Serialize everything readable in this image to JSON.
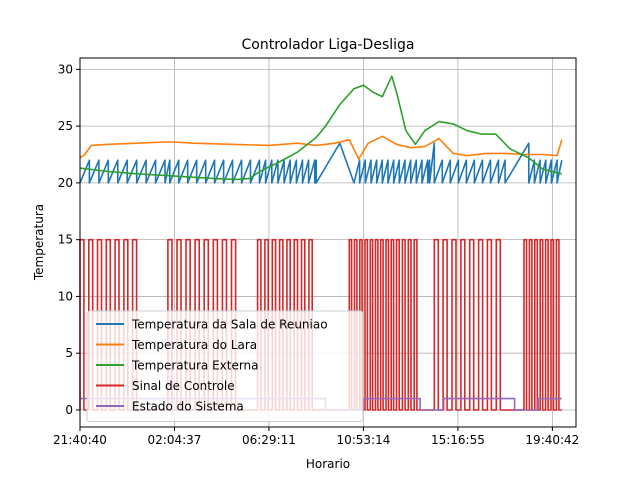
{
  "chart_data": {
    "type": "line",
    "title": "Controlador Liga-Desliga",
    "xlabel": "Horario",
    "ylabel": "Temperatura",
    "xlim": [
      0,
      5.25
    ],
    "ylim": [
      -1.5,
      31
    ],
    "grid": true,
    "legend_position": "lower-left",
    "x_tick_labels": [
      "21:40:40",
      "02:04:37",
      "06:29:11",
      "10:53:14",
      "15:16:55",
      "19:40:42"
    ],
    "x_tick_positions": [
      0,
      1,
      2,
      3,
      4,
      5
    ],
    "y_ticks": [
      0,
      5,
      10,
      15,
      20,
      25,
      30
    ],
    "x_end": 5.1,
    "series": [
      {
        "name": "Temperatura da Sala de Reuniao",
        "color": "#1f77b4",
        "sawtooth": [
          {
            "x0": 0.0,
            "x1": 0.9,
            "low": 20.0,
            "high": 22.0,
            "period": 0.1
          },
          {
            "x0": 0.9,
            "x1": 0.95,
            "low": 20.0,
            "high": 22.0,
            "period": 0.05
          },
          {
            "x0": 0.95,
            "x1": 0.95,
            "low": 20.0,
            "high": 22.8,
            "period": 0.5
          },
          {
            "x0": 0.95,
            "x1": 1.9,
            "low": 20.0,
            "high": 22.0,
            "period": 0.095
          },
          {
            "x0": 1.9,
            "x1": 2.5,
            "low": 20.0,
            "high": 22.0,
            "period": 0.065
          },
          {
            "x0": 2.5,
            "x1": 2.75,
            "low": 20.0,
            "high": 23.5,
            "period": 0.25
          },
          {
            "x0": 2.9,
            "x1": 3.7,
            "low": 20.0,
            "high": 22.0,
            "period": 0.06
          },
          {
            "x0": 3.7,
            "x1": 3.75,
            "low": 20.0,
            "high": 23.5,
            "period": 0.15
          },
          {
            "x0": 3.75,
            "x1": 4.5,
            "low": 20.0,
            "high": 22.0,
            "period": 0.085
          },
          {
            "x0": 4.5,
            "x1": 4.75,
            "low": 20.0,
            "high": 23.5,
            "period": 0.25
          },
          {
            "x0": 4.75,
            "x1": 5.1,
            "low": 20.0,
            "high": 22.0,
            "period": 0.06
          }
        ]
      },
      {
        "name": "Temperatura do Lara",
        "color": "#ff7f0e",
        "x": [
          0.0,
          0.05,
          0.12,
          0.3,
          0.6,
          0.9,
          1.0,
          1.2,
          1.6,
          2.0,
          2.3,
          2.5,
          2.7,
          2.85,
          2.95,
          3.05,
          3.2,
          3.35,
          3.5,
          3.65,
          3.8,
          3.95,
          4.1,
          4.3,
          4.5,
          4.7,
          4.9,
          5.05,
          5.1
        ],
        "y": [
          22.2,
          22.5,
          23.3,
          23.4,
          23.5,
          23.6,
          23.6,
          23.5,
          23.4,
          23.3,
          23.5,
          23.3,
          23.5,
          23.8,
          22.1,
          23.5,
          24.1,
          23.4,
          23.1,
          23.2,
          23.9,
          22.6,
          22.4,
          22.6,
          22.6,
          22.5,
          22.5,
          22.4,
          23.8
        ]
      },
      {
        "name": "Temperatura Externa",
        "color": "#2ca02c",
        "x": [
          0.0,
          0.3,
          0.6,
          1.0,
          1.4,
          1.65,
          1.8,
          1.9,
          2.1,
          2.3,
          2.5,
          2.6,
          2.75,
          2.9,
          3.0,
          3.1,
          3.2,
          3.3,
          3.35,
          3.45,
          3.55,
          3.65,
          3.8,
          3.95,
          4.1,
          4.25,
          4.4,
          4.55,
          4.75,
          4.9,
          5.1
        ],
        "y": [
          21.3,
          21.0,
          20.8,
          20.6,
          20.4,
          20.3,
          20.4,
          21.0,
          21.8,
          22.7,
          24.0,
          25.0,
          26.9,
          28.3,
          28.6,
          28.0,
          27.6,
          29.4,
          28.0,
          24.6,
          23.4,
          24.6,
          25.4,
          25.2,
          24.6,
          24.3,
          24.3,
          23.0,
          22.2,
          21.2,
          20.8
        ]
      },
      {
        "name": "Sinal de Controle",
        "color": "#d62728",
        "low": 0,
        "high": 15,
        "pulse_blocks": [
          {
            "x0": 0.0,
            "x1": 0.65,
            "count": 7
          },
          {
            "x0": 0.93,
            "x1": 1.7,
            "count": 8
          },
          {
            "x0": 1.88,
            "x1": 2.5,
            "count": 8
          },
          {
            "x0": 2.85,
            "x1": 3.35,
            "count": 9
          },
          {
            "x0": 3.35,
            "x1": 3.6,
            "count": 4
          },
          {
            "x0": 3.75,
            "x1": 4.5,
            "count": 8
          },
          {
            "x0": 4.7,
            "x1": 5.1,
            "count": 7
          }
        ]
      },
      {
        "name": "Estado do Sistema",
        "color": "#9467bd",
        "x": [
          0.0,
          2.6,
          2.6,
          3.0,
          3.0,
          3.6,
          3.6,
          3.85,
          3.85,
          4.6,
          4.6,
          4.85,
          4.85,
          5.1
        ],
        "y": [
          1,
          1,
          0,
          0,
          1,
          1,
          0,
          0,
          1,
          1,
          0,
          0,
          1,
          1
        ]
      }
    ]
  }
}
